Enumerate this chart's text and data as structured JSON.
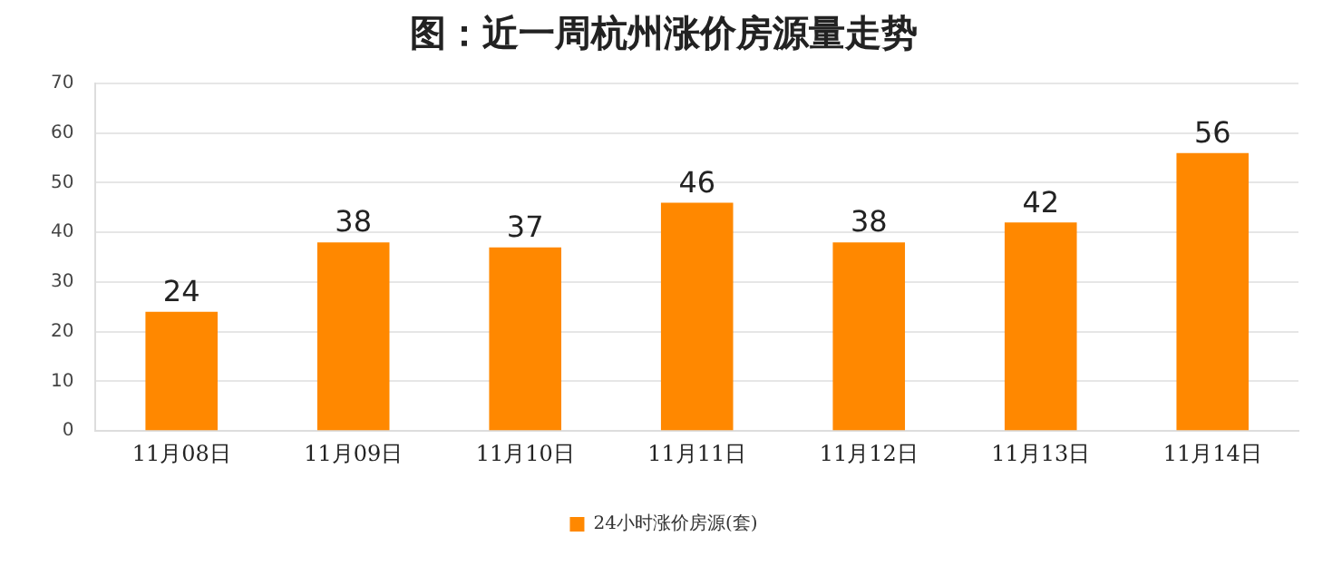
{
  "chart_data": {
    "type": "bar",
    "title": "图：近一周杭州涨价房源量走势",
    "categories": [
      "11月08日",
      "11月09日",
      "11月10日",
      "11月11日",
      "11月12日",
      "11月13日",
      "11月14日"
    ],
    "series": [
      {
        "name": "24小时涨价房源(套)",
        "color": "#ff8800",
        "values": [
          24,
          38,
          37,
          46,
          38,
          42,
          56
        ]
      }
    ],
    "ylim": [
      0,
      70
    ],
    "yticks": [
      0,
      10,
      20,
      30,
      40,
      50,
      60,
      70
    ],
    "grid": "y",
    "legend": "bottom",
    "data_labels": true
  }
}
